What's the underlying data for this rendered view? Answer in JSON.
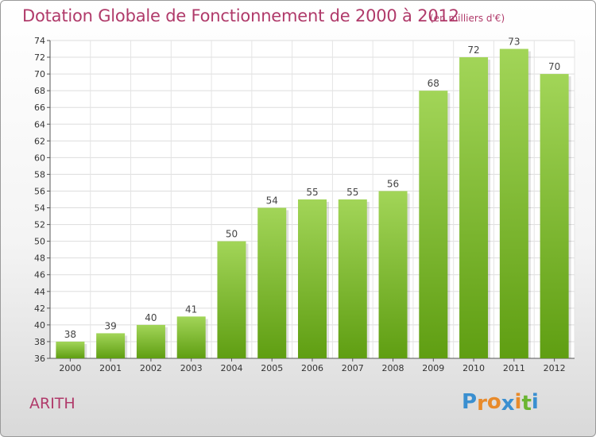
{
  "header": {
    "title": "Dotation Globale de Fonctionnement de 2000 à 2012",
    "unit": "(en milliers d'€)"
  },
  "footer": {
    "commune": "ARITH",
    "logo": [
      "P",
      "r",
      "o",
      "x",
      "i",
      "t",
      "i"
    ]
  },
  "colors": {
    "title": "#b03a6a",
    "bar_light": "#a2d558",
    "bar_dark": "#5f9e12",
    "logo": [
      "#3a8fd0",
      "#e88a2a",
      "#e88a2a",
      "#3a8fd0",
      "#e88a2a",
      "#6ab532",
      "#3a8fd0"
    ]
  },
  "chart_data": {
    "type": "bar",
    "title": "Dotation Globale de Fonctionnement de 2000 à 2012",
    "subtitle": "(en milliers d'€)",
    "xlabel": "",
    "ylabel": "",
    "categories": [
      "2000",
      "2001",
      "2002",
      "2003",
      "2004",
      "2005",
      "2006",
      "2007",
      "2008",
      "2009",
      "2010",
      "2011",
      "2012"
    ],
    "values": [
      38,
      39,
      40,
      41,
      50,
      54,
      55,
      55,
      56,
      68,
      72,
      73,
      70
    ],
    "ylim": [
      36,
      74
    ],
    "yticks": [
      36,
      38,
      40,
      42,
      44,
      46,
      48,
      50,
      52,
      54,
      56,
      58,
      60,
      62,
      64,
      66,
      68,
      70,
      72,
      74
    ],
    "grid": true,
    "legend": "none"
  }
}
